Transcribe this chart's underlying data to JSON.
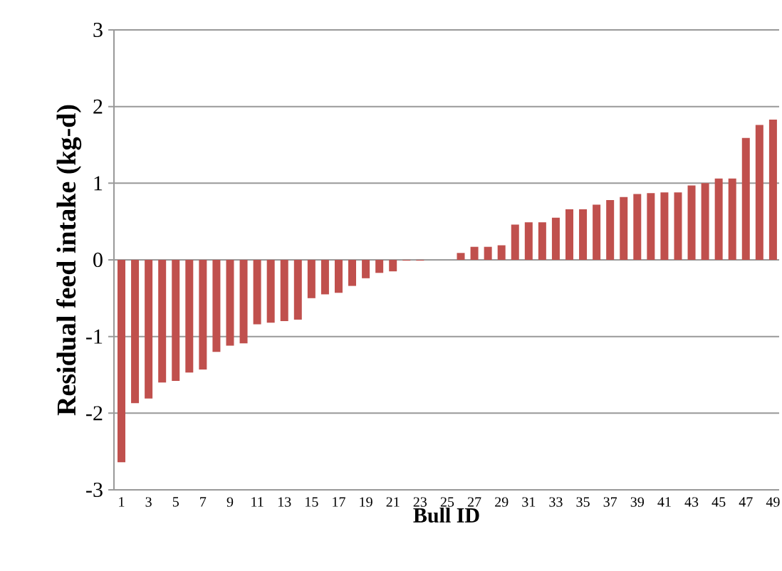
{
  "chart_data": {
    "type": "bar",
    "xlabel": "Bull ID",
    "ylabel": "Residual feed intake (kg-d)",
    "categories": [
      "1",
      null,
      "3",
      null,
      "5",
      null,
      "7",
      null,
      "9",
      null,
      "11",
      null,
      "13",
      null,
      "15",
      null,
      "17",
      null,
      "19",
      null,
      "21",
      null,
      "23",
      null,
      "25",
      null,
      "27",
      null,
      "29",
      null,
      "31",
      null,
      "33",
      null,
      "35",
      null,
      "37",
      null,
      "39",
      null,
      "41",
      null,
      "43",
      null,
      "45",
      null,
      "47",
      null,
      "49"
    ],
    "values": [
      -2.64,
      -1.87,
      -1.81,
      -1.6,
      -1.58,
      -1.47,
      -1.43,
      -1.2,
      -1.12,
      -1.09,
      -0.84,
      -0.82,
      -0.8,
      -0.78,
      -0.5,
      -0.45,
      -0.43,
      -0.34,
      -0.24,
      -0.17,
      -0.15,
      -0.01,
      -0.01,
      0,
      0,
      0.09,
      0.17,
      0.17,
      0.19,
      0.46,
      0.49,
      0.49,
      0.55,
      0.66,
      0.66,
      0.72,
      0.78,
      0.82,
      0.86,
      0.87,
      0.88,
      0.88,
      0.97,
      1.0,
      1.06,
      1.06,
      1.59,
      1.76,
      1.83
    ],
    "color": "#c0504d",
    "ylim": [
      -3,
      3
    ],
    "yticks": [
      -3,
      -2,
      -1,
      0,
      1,
      2,
      3
    ],
    "grid": "y"
  }
}
